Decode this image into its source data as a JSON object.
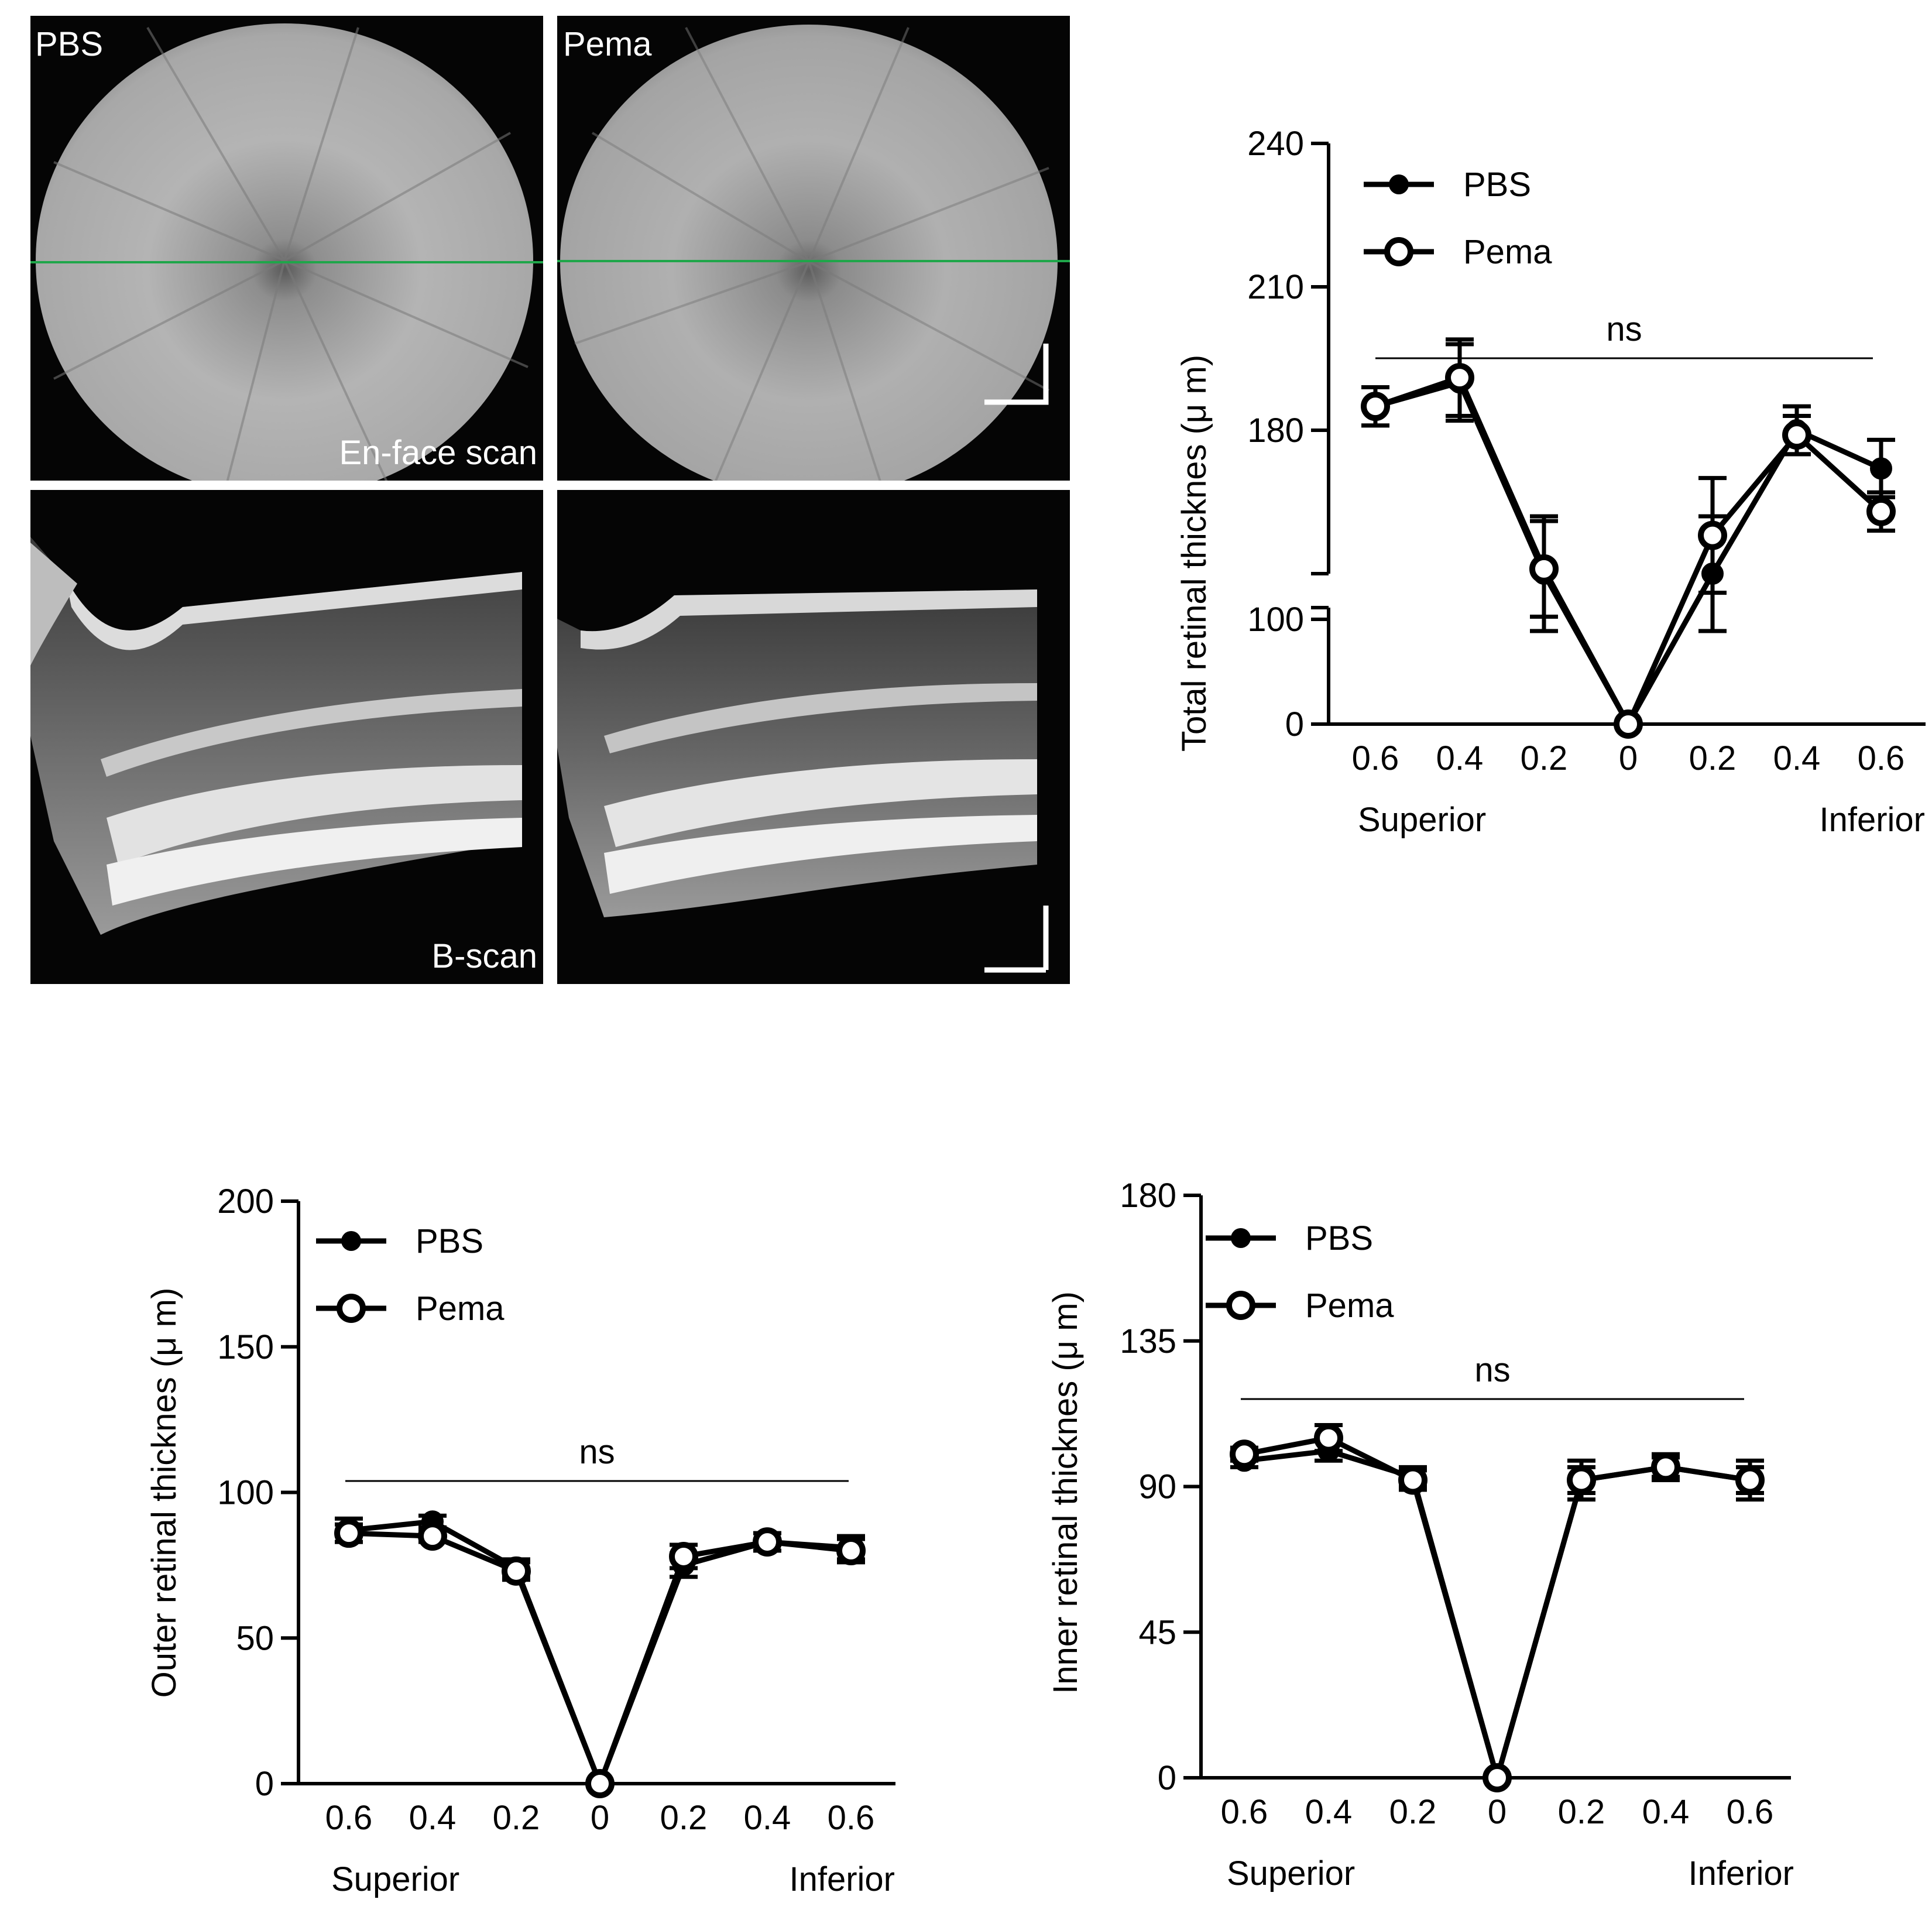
{
  "images": {
    "pbs_label": "PBS",
    "pema_label": "Pema",
    "enface_label": "En-face scan",
    "bscan_label": "B-scan",
    "scan_line_color": "#1fa64a"
  },
  "legend": {
    "series1": "PBS",
    "series2": "Pema"
  },
  "chart_data": [
    {
      "id": "total",
      "type": "line",
      "ylabel": "Total retinal thicknes (μ m)",
      "categories": [
        "0.6",
        "0.4",
        "0.2",
        "0",
        "0.2",
        "0.4",
        "0.6"
      ],
      "xgroups": [
        "Superior",
        "Inferior"
      ],
      "y_broken": true,
      "y_segments": [
        {
          "range": [
            0,
            100
          ],
          "ticks": [
            0,
            100
          ]
        },
        {
          "range": [
            150,
            240
          ],
          "ticks": [
            180,
            210,
            240
          ]
        }
      ],
      "annotation": "ns",
      "series": [
        {
          "name": "PBS",
          "marker": "filled",
          "values": [
            185,
            190,
            150,
            0,
            150,
            180,
            172
          ],
          "err": [
            4,
            8,
            12,
            0,
            12,
            5,
            6
          ]
        },
        {
          "name": "Pema",
          "marker": "open",
          "values": [
            185,
            191,
            151,
            0,
            158,
            179,
            163
          ],
          "err": [
            4,
            8,
            10,
            0,
            12,
            4,
            4
          ]
        }
      ]
    },
    {
      "id": "outer",
      "type": "line",
      "ylabel": "Outer retinal thicknes (μ m)",
      "categories": [
        "0.6",
        "0.4",
        "0.2",
        "0",
        "0.2",
        "0.4",
        "0.6"
      ],
      "xgroups": [
        "Superior",
        "Inferior"
      ],
      "ylim": [
        0,
        200
      ],
      "yticks": [
        0,
        50,
        100,
        150,
        200
      ],
      "annotation": "ns",
      "series": [
        {
          "name": "PBS",
          "marker": "filled",
          "values": [
            87,
            90,
            74,
            0,
            75,
            83,
            81
          ],
          "err": [
            4,
            2,
            3,
            0,
            4,
            3,
            4
          ]
        },
        {
          "name": "Pema",
          "marker": "open",
          "values": [
            86,
            85,
            73,
            0,
            78,
            83,
            80
          ],
          "err": [
            3,
            2,
            3,
            0,
            4,
            3,
            4
          ]
        }
      ]
    },
    {
      "id": "inner",
      "type": "line",
      "ylabel": "Inner retinal thicknes (μ m)",
      "categories": [
        "0.6",
        "0.4",
        "0.2",
        "0",
        "0.2",
        "0.4",
        "0.6"
      ],
      "xgroups": [
        "Superior",
        "Inferior"
      ],
      "ylim": [
        0,
        180
      ],
      "yticks": [
        0,
        45,
        90,
        135,
        180
      ],
      "annotation": "ns",
      "series": [
        {
          "name": "PBS",
          "marker": "filled",
          "values": [
            98,
            101,
            93,
            0,
            92,
            96,
            92
          ],
          "err": [
            2,
            3,
            3,
            0,
            4,
            3,
            4
          ]
        },
        {
          "name": "Pema",
          "marker": "open",
          "values": [
            100,
            105,
            92,
            0,
            92,
            96,
            92
          ],
          "err": [
            2,
            4,
            3,
            0,
            6,
            4,
            6
          ]
        }
      ]
    }
  ]
}
